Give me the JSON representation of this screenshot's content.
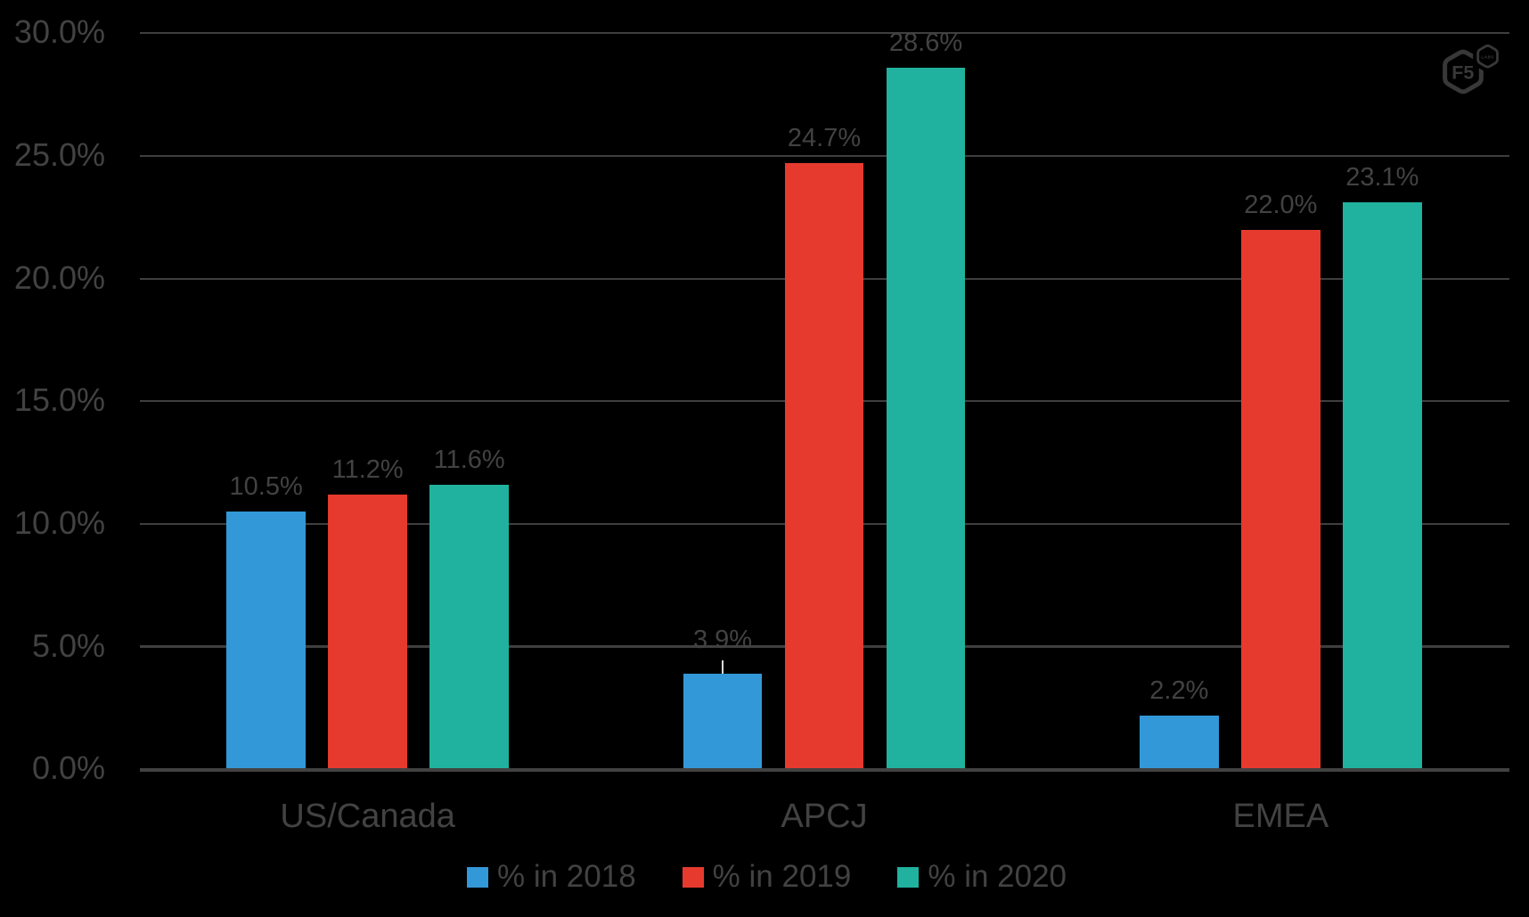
{
  "chart_data": {
    "type": "bar",
    "categories": [
      "US/Canada",
      "APCJ",
      "EMEA"
    ],
    "series": [
      {
        "name": "% in 2018",
        "color": "#3398d8",
        "values": [
          10.5,
          3.9,
          2.2
        ]
      },
      {
        "name": "% in 2019",
        "color": "#e63a2e",
        "values": [
          11.2,
          24.7,
          22.0
        ]
      },
      {
        "name": "% in 2020",
        "color": "#20b29e",
        "values": [
          11.6,
          28.6,
          23.1
        ]
      }
    ],
    "xlabel": "",
    "ylabel": "",
    "ylim": [
      0,
      30
    ],
    "ytick_step": 5,
    "ytick_labels": [
      "0.0%",
      "5.0%",
      "10.0%",
      "15.0%",
      "20.0%",
      "25.0%",
      "30.0%"
    ],
    "grid": true,
    "legend_position": "bottom",
    "data_label_format": "0.0%",
    "moved_label": {
      "category": "APCJ",
      "series": "% in 2018",
      "leader_line": true
    }
  },
  "branding": {
    "logo_primary": "F5",
    "logo_secondary": "LABS"
  },
  "colors": {
    "background": "#000000",
    "text": "#424242",
    "gridline": "#3f3f3f",
    "axis": "#424242",
    "leader": "#d9d9d9",
    "logo": "#383838"
  }
}
